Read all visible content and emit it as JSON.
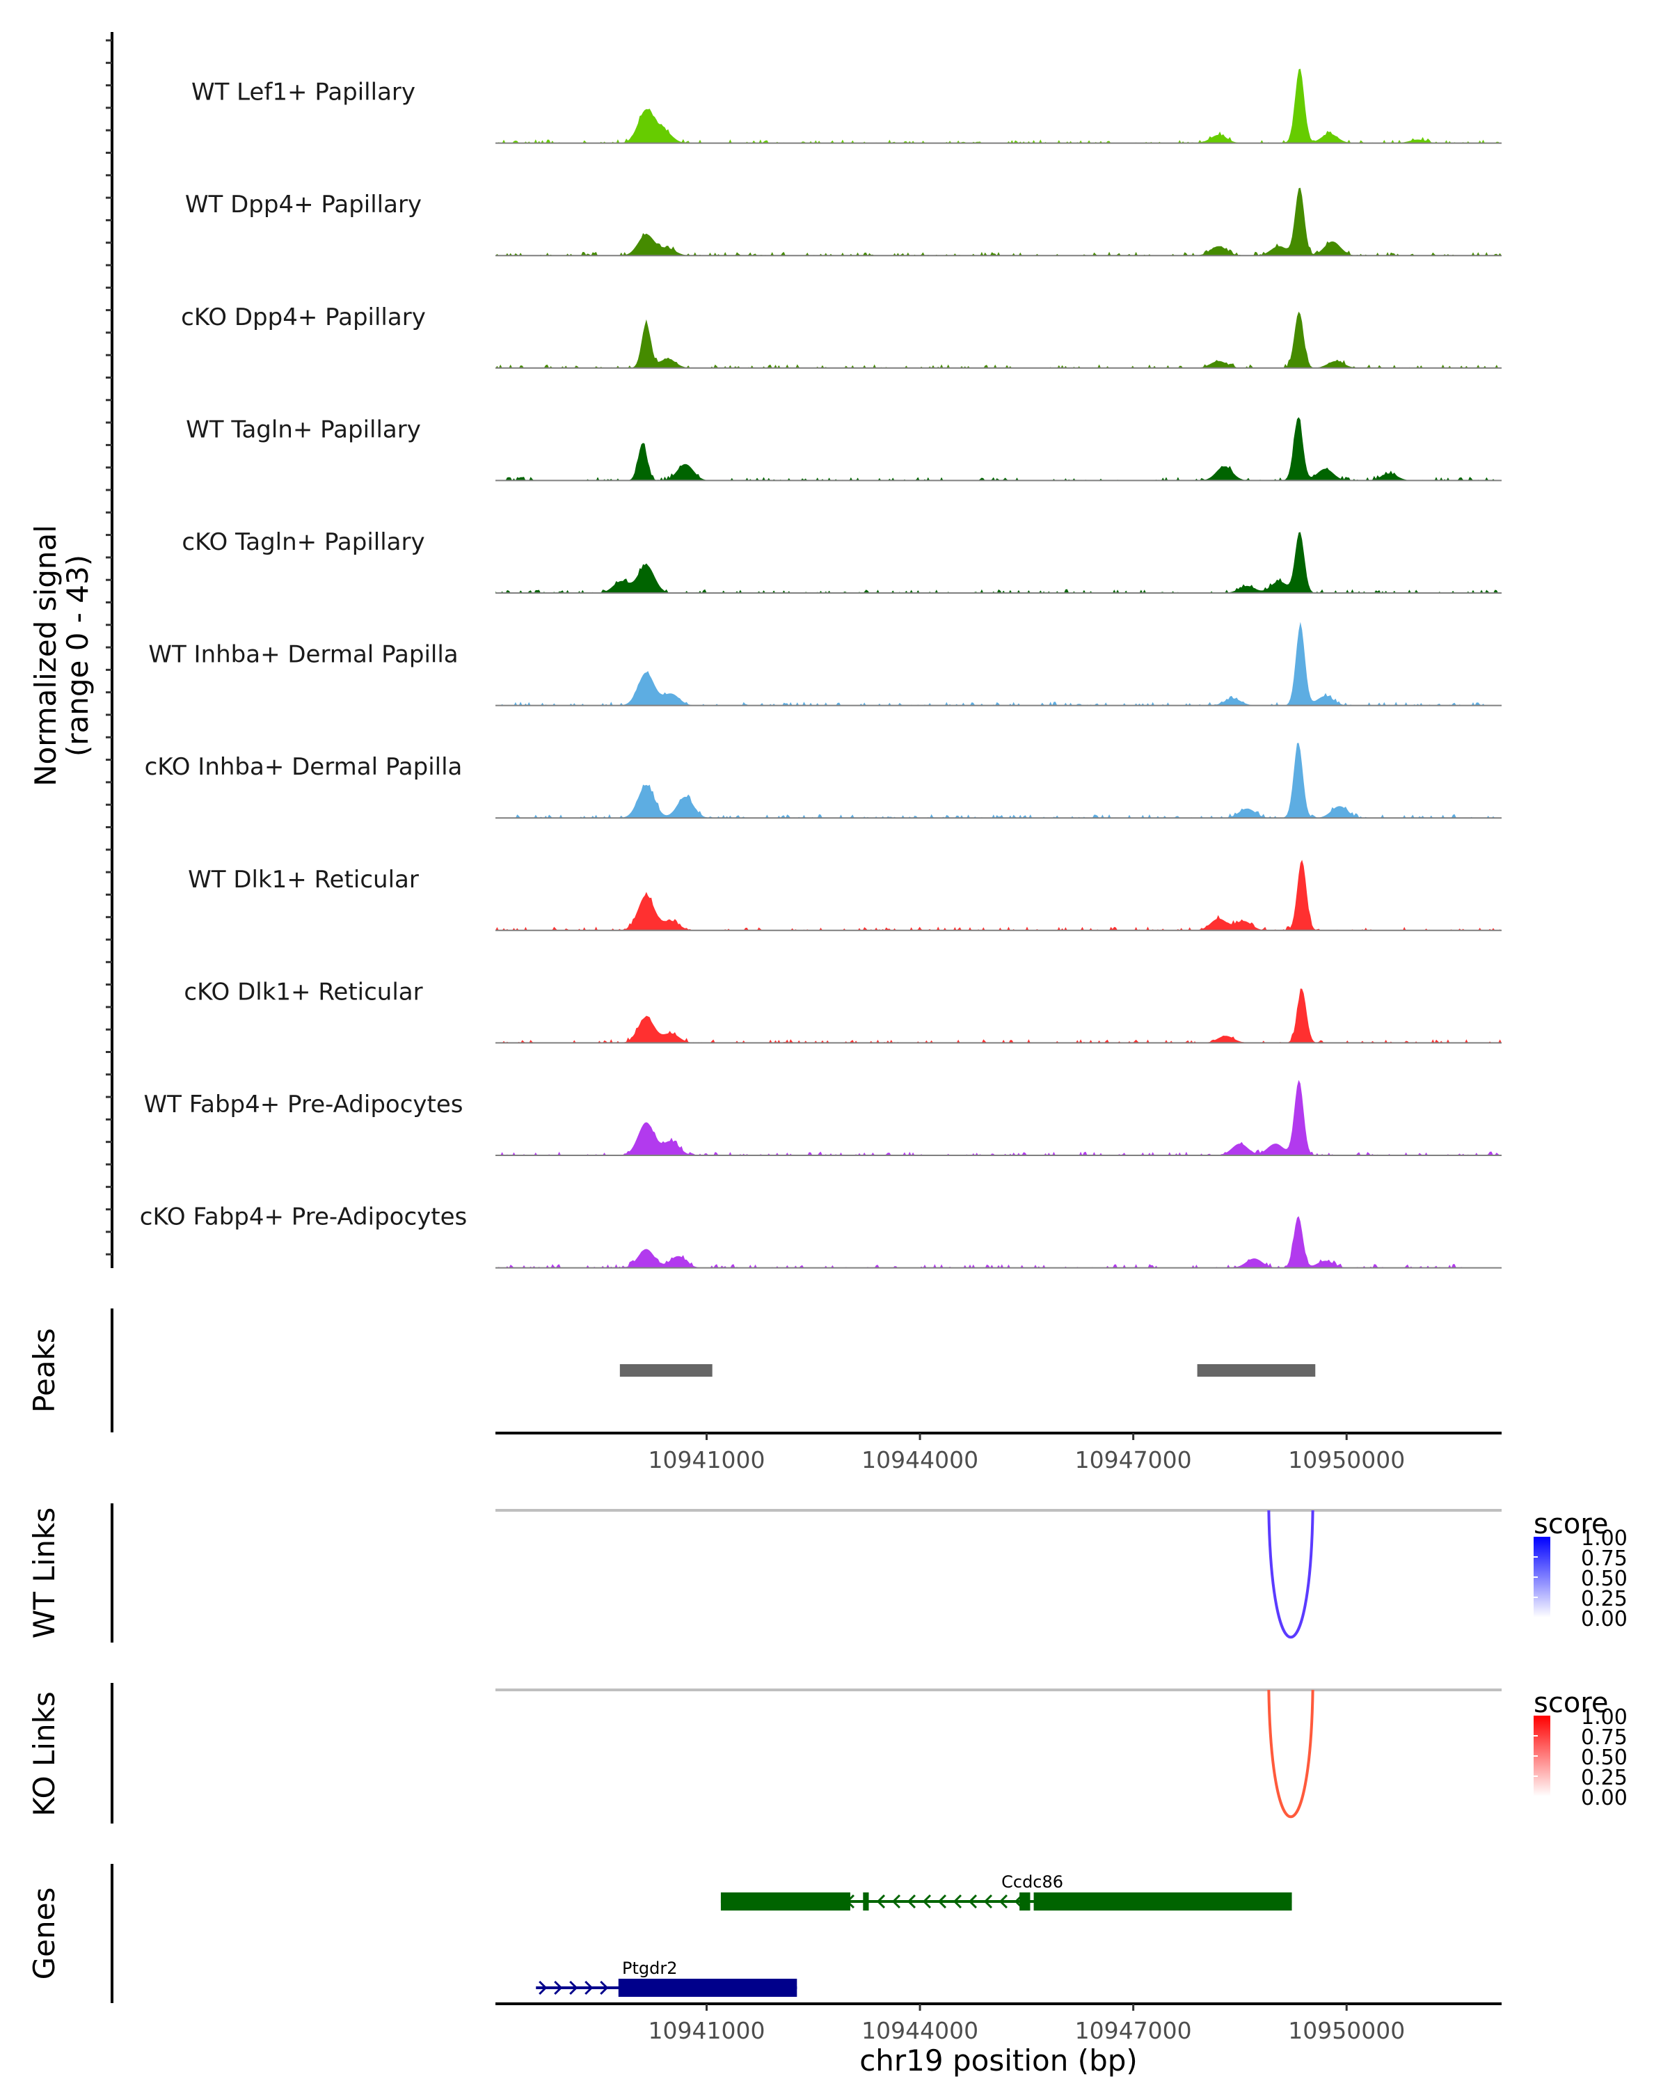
{
  "chart_data": {
    "type": "area",
    "title": "",
    "region": {
      "chromosome": "chr19",
      "start": 10938030,
      "end": 10952180
    },
    "xlabel": "chr19 position (bp)",
    "x_ticks": [
      10941000,
      10944000,
      10947000,
      10950000
    ],
    "x_tick_labels": [
      "10941000",
      "10944000",
      "10947000",
      "10950000"
    ],
    "coverage": {
      "ylabel": "Normalized signal\n(range 0 - 43)",
      "ylabel_line1": "Normalized signal",
      "ylabel_line2": "(range 0 - 43)",
      "ylim": [
        0,
        43
      ],
      "tracks": [
        {
          "name": "WT Lef1+ Papillary",
          "color": "#66CC00",
          "peaks": [
            {
              "pos": 10940150,
              "h": 14
            },
            {
              "pos": 10940400,
              "h": 5
            },
            {
              "pos": 10949340,
              "h": 32
            },
            {
              "pos": 10948200,
              "h": 3.5
            },
            {
              "pos": 10949760,
              "h": 4
            },
            {
              "pos": 10951000,
              "h": 1.5
            }
          ]
        },
        {
          "name": "WT Dpp4+ Papillary",
          "color": "#458B00",
          "peaks": [
            {
              "pos": 10940150,
              "h": 9
            },
            {
              "pos": 10940450,
              "h": 3
            },
            {
              "pos": 10949340,
              "h": 29
            },
            {
              "pos": 10948200,
              "h": 4
            },
            {
              "pos": 10949800,
              "h": 6
            },
            {
              "pos": 10949050,
              "h": 4
            }
          ]
        },
        {
          "name": "cKO Dpp4+ Papillary",
          "color": "#458B00",
          "peaks": [
            {
              "pos": 10940150,
              "h": 19
            },
            {
              "pos": 10940450,
              "h": 4
            },
            {
              "pos": 10949330,
              "h": 24
            },
            {
              "pos": 10948200,
              "h": 3
            },
            {
              "pos": 10949850,
              "h": 3
            }
          ]
        },
        {
          "name": "WT Tagln+ Papillary",
          "color": "#006400",
          "peaks": [
            {
              "pos": 10940100,
              "h": 16
            },
            {
              "pos": 10940700,
              "h": 7
            },
            {
              "pos": 10949320,
              "h": 27
            },
            {
              "pos": 10948280,
              "h": 6
            },
            {
              "pos": 10949700,
              "h": 5
            },
            {
              "pos": 10950600,
              "h": 3
            }
          ]
        },
        {
          "name": "cKO Tagln+ Papillary",
          "color": "#006400",
          "peaks": [
            {
              "pos": 10940150,
              "h": 12
            },
            {
              "pos": 10939800,
              "h": 5
            },
            {
              "pos": 10949340,
              "h": 26
            },
            {
              "pos": 10948600,
              "h": 3
            },
            {
              "pos": 10949050,
              "h": 5
            }
          ]
        },
        {
          "name": "WT Inhba+ Dermal Papilla",
          "color": "#5DADE2",
          "peaks": [
            {
              "pos": 10940150,
              "h": 14
            },
            {
              "pos": 10940500,
              "h": 5
            },
            {
              "pos": 10949350,
              "h": 34
            },
            {
              "pos": 10948400,
              "h": 3
            },
            {
              "pos": 10949700,
              "h": 4
            }
          ]
        },
        {
          "name": "cKO Inhba+ Dermal Papilla",
          "color": "#5DADE2",
          "peaks": [
            {
              "pos": 10940150,
              "h": 14
            },
            {
              "pos": 10940700,
              "h": 9
            },
            {
              "pos": 10949320,
              "h": 32
            },
            {
              "pos": 10948600,
              "h": 4
            },
            {
              "pos": 10949900,
              "h": 5
            }
          ]
        },
        {
          "name": "WT Dlk1+ Reticular",
          "color": "#FF3030",
          "peaks": [
            {
              "pos": 10940150,
              "h": 15
            },
            {
              "pos": 10940500,
              "h": 4
            },
            {
              "pos": 10949370,
              "h": 30
            },
            {
              "pos": 10948200,
              "h": 5
            },
            {
              "pos": 10948550,
              "h": 4
            }
          ]
        },
        {
          "name": "cKO Dlk1+ Reticular",
          "color": "#FF3030",
          "peaks": [
            {
              "pos": 10940150,
              "h": 11
            },
            {
              "pos": 10940500,
              "h": 4
            },
            {
              "pos": 10949370,
              "h": 23
            },
            {
              "pos": 10948300,
              "h": 3
            }
          ]
        },
        {
          "name": "WT Fabp4+ Pre-Adipocytes",
          "color": "#B23AEE",
          "peaks": [
            {
              "pos": 10940150,
              "h": 14
            },
            {
              "pos": 10940500,
              "h": 6
            },
            {
              "pos": 10949330,
              "h": 32
            },
            {
              "pos": 10948500,
              "h": 5
            },
            {
              "pos": 10949000,
              "h": 5
            }
          ]
        },
        {
          "name": "cKO Fabp4+ Pre-Adipocytes",
          "color": "#B23AEE",
          "peaks": [
            {
              "pos": 10940150,
              "h": 8
            },
            {
              "pos": 10940600,
              "h": 5
            },
            {
              "pos": 10949320,
              "h": 22
            },
            {
              "pos": 10948700,
              "h": 4
            },
            {
              "pos": 10949700,
              "h": 3
            }
          ]
        }
      ]
    },
    "peaks": {
      "label": "Peaks",
      "color": "#666666",
      "regions": [
        {
          "start": 10939780,
          "end": 10941080
        },
        {
          "start": 10947900,
          "end": 10949560
        }
      ]
    },
    "links": [
      {
        "label": "WT Links",
        "legend_title": "score",
        "legend_ticks": [
          "1.00",
          "0.75",
          "0.50",
          "0.25",
          "0.00"
        ],
        "low_color": "#FFFFFF",
        "high_color": "#0000FF",
        "arc_color": "#5B3BFF",
        "arcs": [
          {
            "start": 10949150,
            "end": 10949280,
            "score": 0.72
          }
        ]
      },
      {
        "label": "KO Links",
        "legend_title": "score",
        "legend_ticks": [
          "1.00",
          "0.75",
          "0.50",
          "0.25",
          "0.00"
        ],
        "low_color": "#FFFFFF",
        "high_color": "#FF0000",
        "arc_color": "#FF5A3C",
        "arcs": [
          {
            "start": 10949150,
            "end": 10949280,
            "score": 0.72
          }
        ]
      }
    ],
    "genes": {
      "label": "Genes",
      "items": [
        {
          "name": "Ccdc86",
          "strand": "-",
          "color": "#006400",
          "start": 10941200,
          "end": 10949230,
          "exons": [
            {
              "start": 10941200,
              "end": 10943020
            },
            {
              "start": 10943200,
              "end": 10943280
            },
            {
              "start": 10945400,
              "end": 10945550
            },
            {
              "start": 10945600,
              "end": 10949230
            }
          ]
        },
        {
          "name": "Ptgdr2",
          "strand": "+",
          "color": "#00008B",
          "start": 10938600,
          "end": 10942270,
          "exons": [
            {
              "start": 10939760,
              "end": 10942270
            }
          ]
        }
      ]
    }
  }
}
